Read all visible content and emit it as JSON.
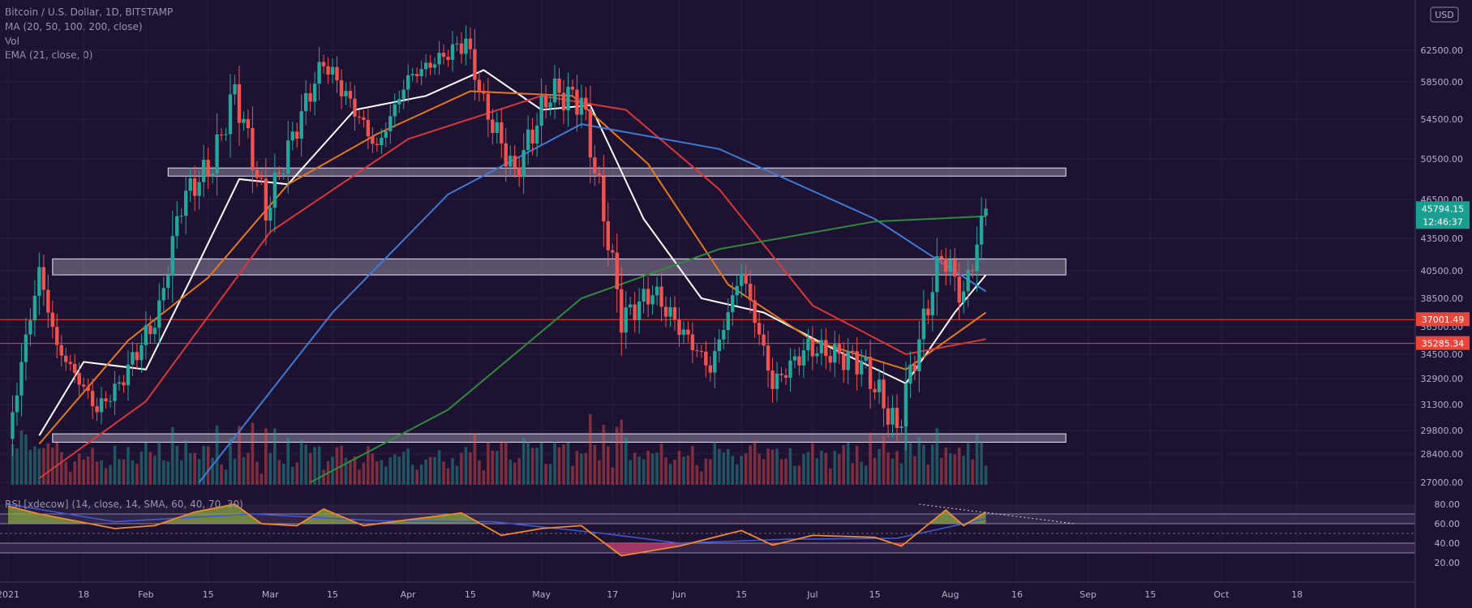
{
  "chart_data": {
    "type": "candlestick",
    "title": "Bitcoin / U.S. Dollar, 1D, BITSTAMP",
    "currency": "USD",
    "legend": [
      "MA (20, 50, 100, 200, close)",
      "Vol",
      "EMA (21, close, 0)"
    ],
    "rsi_label": "RSI [xdecow] (14, close, 14, SMA, 60, 40, 70, 30)",
    "y_ticks": [
      "62500.00",
      "58500.00",
      "54500.00",
      "50500.00",
      "46500.00",
      "43500.00",
      "40500.00",
      "38500.00",
      "36500.00",
      "34500.00",
      "32900.00",
      "31300.00",
      "29800.00",
      "28400.00",
      "27000.00"
    ],
    "rsi_ticks": [
      "80.00",
      "60.00",
      "40.00",
      "20.00"
    ],
    "x_labels": [
      {
        "label": "2021",
        "date": "2021-01-01"
      },
      {
        "label": "18",
        "date": "2021-01-18"
      },
      {
        "label": "Feb",
        "date": "2021-02-01"
      },
      {
        "label": "15",
        "date": "2021-02-15"
      },
      {
        "label": "Mar",
        "date": "2021-03-01"
      },
      {
        "label": "15",
        "date": "2021-03-15"
      },
      {
        "label": "Apr",
        "date": "2021-04-01"
      },
      {
        "label": "15",
        "date": "2021-04-15"
      },
      {
        "label": "May",
        "date": "2021-05-01"
      },
      {
        "label": "17",
        "date": "2021-05-17"
      },
      {
        "label": "Jun",
        "date": "2021-06-01"
      },
      {
        "label": "15",
        "date": "2021-06-15"
      },
      {
        "label": "Jul",
        "date": "2021-07-01"
      },
      {
        "label": "15",
        "date": "2021-07-15"
      },
      {
        "label": "Aug",
        "date": "2021-08-01"
      },
      {
        "label": "16",
        "date": "2021-08-16"
      },
      {
        "label": "Sep",
        "date": "2021-09-01"
      },
      {
        "label": "15",
        "date": "2021-09-15"
      },
      {
        "label": "Oct",
        "date": "2021-10-01"
      },
      {
        "label": "18",
        "date": "2021-10-18"
      }
    ],
    "price_badges": [
      {
        "value": "45794.15",
        "sub": "12:46:37",
        "price": 45794,
        "color": "#1a9e8f"
      },
      {
        "value": "37001.49",
        "price": 37001,
        "color": "#e8463b"
      },
      {
        "value": "35285.34",
        "price": 35285,
        "color": "#e8463b"
      }
    ],
    "horizontal_lines": [
      {
        "price": 37001,
        "color": "#e8463b"
      },
      {
        "price": 35285,
        "color": "#e8463b"
      }
    ],
    "zones": [
      {
        "from_date": "2021-02-06",
        "to_date": "2021-08-27",
        "low": 48800,
        "high": 49600
      },
      {
        "from_date": "2021-01-11",
        "to_date": "2021-08-27",
        "low": 40200,
        "high": 41600
      },
      {
        "from_date": "2021-01-11",
        "to_date": "2021-08-27",
        "low": 29100,
        "high": 29600
      }
    ],
    "keypoints": [
      {
        "date": "2021-01-01",
        "price": 29000
      },
      {
        "date": "2021-01-08",
        "price": 40500
      },
      {
        "date": "2021-01-12",
        "price": 35000
      },
      {
        "date": "2021-01-21",
        "price": 31000
      },
      {
        "date": "2021-01-26",
        "price": 32500
      },
      {
        "date": "2021-02-04",
        "price": 37500
      },
      {
        "date": "2021-02-09",
        "price": 46500
      },
      {
        "date": "2021-02-16",
        "price": 50000
      },
      {
        "date": "2021-02-21",
        "price": 57500
      },
      {
        "date": "2021-02-28",
        "price": 45500
      },
      {
        "date": "2021-03-13",
        "price": 61000
      },
      {
        "date": "2021-03-25",
        "price": 51500
      },
      {
        "date": "2021-04-01",
        "price": 59000
      },
      {
        "date": "2021-04-14",
        "price": 63500
      },
      {
        "date": "2021-04-18",
        "price": 56000
      },
      {
        "date": "2021-04-25",
        "price": 49000
      },
      {
        "date": "2021-05-03",
        "price": 57500
      },
      {
        "date": "2021-05-10",
        "price": 56500
      },
      {
        "date": "2021-05-13",
        "price": 49500
      },
      {
        "date": "2021-05-19",
        "price": 37000
      },
      {
        "date": "2021-05-26",
        "price": 39000
      },
      {
        "date": "2021-06-08",
        "price": 33500
      },
      {
        "date": "2021-06-15",
        "price": 40500
      },
      {
        "date": "2021-06-22",
        "price": 32500
      },
      {
        "date": "2021-06-30",
        "price": 35000
      },
      {
        "date": "2021-07-12",
        "price": 34000
      },
      {
        "date": "2021-07-20",
        "price": 29800
      },
      {
        "date": "2021-07-25",
        "price": 35500
      },
      {
        "date": "2021-07-30",
        "price": 42000
      },
      {
        "date": "2021-08-04",
        "price": 38500
      },
      {
        "date": "2021-08-09",
        "price": 45794
      }
    ],
    "moving_averages": [
      {
        "name": "MA 20",
        "color": "#ffffff",
        "points": [
          {
            "date": "2021-01-08",
            "price": 29500
          },
          {
            "date": "2021-01-18",
            "price": 34000
          },
          {
            "date": "2021-02-01",
            "price": 33500
          },
          {
            "date": "2021-02-12",
            "price": 40500
          },
          {
            "date": "2021-02-22",
            "price": 48500
          },
          {
            "date": "2021-03-05",
            "price": 48000
          },
          {
            "date": "2021-03-20",
            "price": 55500
          },
          {
            "date": "2021-04-05",
            "price": 57000
          },
          {
            "date": "2021-04-18",
            "price": 60000
          },
          {
            "date": "2021-05-01",
            "price": 55500
          },
          {
            "date": "2021-05-12",
            "price": 56000
          },
          {
            "date": "2021-05-24",
            "price": 45000
          },
          {
            "date": "2021-06-06",
            "price": 38500
          },
          {
            "date": "2021-06-20",
            "price": 37500
          },
          {
            "date": "2021-07-05",
            "price": 35000
          },
          {
            "date": "2021-07-22",
            "price": 32600
          },
          {
            "date": "2021-08-02",
            "price": 37500
          },
          {
            "date": "2021-08-09",
            "price": 40200
          }
        ]
      },
      {
        "name": "MA 50",
        "color": "#e3791d",
        "points": [
          {
            "date": "2021-01-08",
            "price": 29000
          },
          {
            "date": "2021-01-28",
            "price": 35500
          },
          {
            "date": "2021-02-15",
            "price": 40000
          },
          {
            "date": "2021-03-05",
            "price": 48000
          },
          {
            "date": "2021-03-25",
            "price": 53000
          },
          {
            "date": "2021-04-15",
            "price": 57500
          },
          {
            "date": "2021-05-08",
            "price": 57000
          },
          {
            "date": "2021-05-25",
            "price": 50000
          },
          {
            "date": "2021-06-12",
            "price": 39500
          },
          {
            "date": "2021-07-01",
            "price": 35500
          },
          {
            "date": "2021-07-22",
            "price": 33500
          },
          {
            "date": "2021-08-09",
            "price": 37500
          }
        ]
      },
      {
        "name": "MA 100",
        "color": "#d63838",
        "points": [
          {
            "date": "2021-01-08",
            "price": 27200
          },
          {
            "date": "2021-02-01",
            "price": 31500
          },
          {
            "date": "2021-03-01",
            "price": 44000
          },
          {
            "date": "2021-04-01",
            "price": 52500
          },
          {
            "date": "2021-05-01",
            "price": 57000
          },
          {
            "date": "2021-05-20",
            "price": 55500
          },
          {
            "date": "2021-06-10",
            "price": 47500
          },
          {
            "date": "2021-07-01",
            "price": 38000
          },
          {
            "date": "2021-07-22",
            "price": 34500
          },
          {
            "date": "2021-08-09",
            "price": 35600
          }
        ]
      },
      {
        "name": "MA 200",
        "color": "#3f7ad4",
        "points": [
          {
            "date": "2021-02-13",
            "price": 27000
          },
          {
            "date": "2021-03-15",
            "price": 37500
          },
          {
            "date": "2021-04-10",
            "price": 47000
          },
          {
            "date": "2021-05-10",
            "price": 54000
          },
          {
            "date": "2021-06-10",
            "price": 51500
          },
          {
            "date": "2021-07-15",
            "price": 45000
          },
          {
            "date": "2021-08-09",
            "price": 39000
          }
        ]
      },
      {
        "name": "EMA 21",
        "color": "#2f8a3c",
        "points": [
          {
            "date": "2021-03-10",
            "price": 27000
          },
          {
            "date": "2021-04-10",
            "price": 31000
          },
          {
            "date": "2021-05-10",
            "price": 38500
          },
          {
            "date": "2021-06-10",
            "price": 42500
          },
          {
            "date": "2021-07-15",
            "price": 44800
          },
          {
            "date": "2021-08-09",
            "price": 45200
          }
        ]
      }
    ],
    "rsi": {
      "color": "#f08a2e",
      "overbought_fill": "#8aa640",
      "oversold_fill": "#c33d6c",
      "points": [
        {
          "date": "2021-01-01",
          "value": 78
        },
        {
          "date": "2021-01-08",
          "value": 70
        },
        {
          "date": "2021-01-16",
          "value": 63
        },
        {
          "date": "2021-01-25",
          "value": 55
        },
        {
          "date": "2021-02-03",
          "value": 58
        },
        {
          "date": "2021-02-12",
          "value": 72
        },
        {
          "date": "2021-02-21",
          "value": 80
        },
        {
          "date": "2021-02-27",
          "value": 60
        },
        {
          "date": "2021-03-07",
          "value": 58
        },
        {
          "date": "2021-03-13",
          "value": 75
        },
        {
          "date": "2021-03-22",
          "value": 58
        },
        {
          "date": "2021-04-01",
          "value": 64
        },
        {
          "date": "2021-04-13",
          "value": 71
        },
        {
          "date": "2021-04-22",
          "value": 48
        },
        {
          "date": "2021-05-01",
          "value": 55
        },
        {
          "date": "2021-05-10",
          "value": 58
        },
        {
          "date": "2021-05-19",
          "value": 27
        },
        {
          "date": "2021-06-01",
          "value": 37
        },
        {
          "date": "2021-06-15",
          "value": 53
        },
        {
          "date": "2021-06-22",
          "value": 38
        },
        {
          "date": "2021-07-01",
          "value": 48
        },
        {
          "date": "2021-07-15",
          "value": 46
        },
        {
          "date": "2021-07-21",
          "value": 37
        },
        {
          "date": "2021-07-31",
          "value": 74
        },
        {
          "date": "2021-08-04",
          "value": 58
        },
        {
          "date": "2021-08-09",
          "value": 72
        }
      ],
      "signal_points": [
        {
          "date": "2021-01-01",
          "value": 80
        },
        {
          "date": "2021-01-25",
          "value": 62
        },
        {
          "date": "2021-02-25",
          "value": 70
        },
        {
          "date": "2021-03-25",
          "value": 63
        },
        {
          "date": "2021-04-20",
          "value": 62
        },
        {
          "date": "2021-05-15",
          "value": 50
        },
        {
          "date": "2021-06-01",
          "value": 40
        },
        {
          "date": "2021-06-25",
          "value": 44
        },
        {
          "date": "2021-07-20",
          "value": 45
        },
        {
          "date": "2021-08-09",
          "value": 65
        }
      ]
    }
  }
}
